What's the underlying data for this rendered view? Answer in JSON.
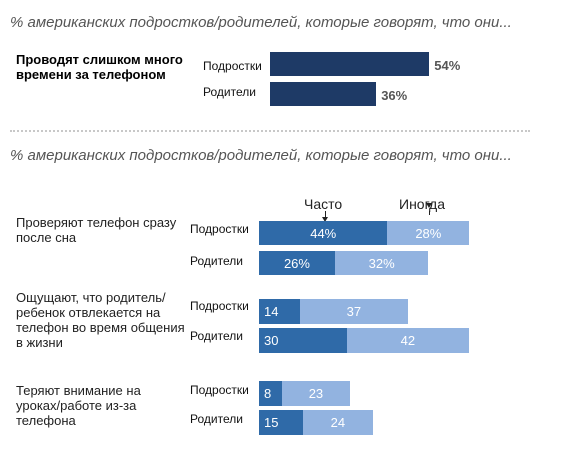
{
  "chart_data": [
    {
      "type": "bar",
      "title": "% американских подростков/родителей, которые говорят, что они...",
      "question": "Проводят слишком много времени за телефоном",
      "categories": [
        "Подростки",
        "Родители"
      ],
      "values": [
        54,
        36
      ],
      "value_labels": [
        "54%",
        "36%"
      ],
      "xlim": [
        0,
        100
      ],
      "color": "#1e3a66"
    },
    {
      "type": "bar",
      "stacked": true,
      "title": "% американских подростков/родителей, которые говорят, что они...",
      "legend": [
        "Часто",
        "Иногда"
      ],
      "colors": {
        "often": "#2f6aa8",
        "sometimes": "#92b3e0"
      },
      "xlim": [
        0,
        100
      ],
      "groups": [
        {
          "question": "Проверяют телефон сразу после сна",
          "rows": [
            {
              "label": "Подростки",
              "often": 44,
              "sometimes": 28,
              "often_label": "44%",
              "sometimes_label": "28%"
            },
            {
              "label": "Родители",
              "often": 26,
              "sometimes": 32,
              "often_label": "26%",
              "sometimes_label": "32%"
            }
          ]
        },
        {
          "question": "Ощущают, что родитель/ребенок отвлекается на телефон во время общения в жизни",
          "rows": [
            {
              "label": "Подростки",
              "often": 14,
              "sometimes": 37,
              "often_label": "14",
              "sometimes_label": "37"
            },
            {
              "label": "Родители",
              "often": 30,
              "sometimes": 42,
              "often_label": "30",
              "sometimes_label": "42"
            }
          ]
        },
        {
          "question": "Теряют внимание на уроках/работе из-за телефона",
          "rows": [
            {
              "label": "Подростки",
              "often": 8,
              "sometimes": 23,
              "often_label": "8",
              "sometimes_label": "23"
            },
            {
              "label": "Родители",
              "often": 15,
              "sometimes": 24,
              "often_label": "15",
              "sometimes_label": "24"
            }
          ]
        }
      ]
    }
  ]
}
